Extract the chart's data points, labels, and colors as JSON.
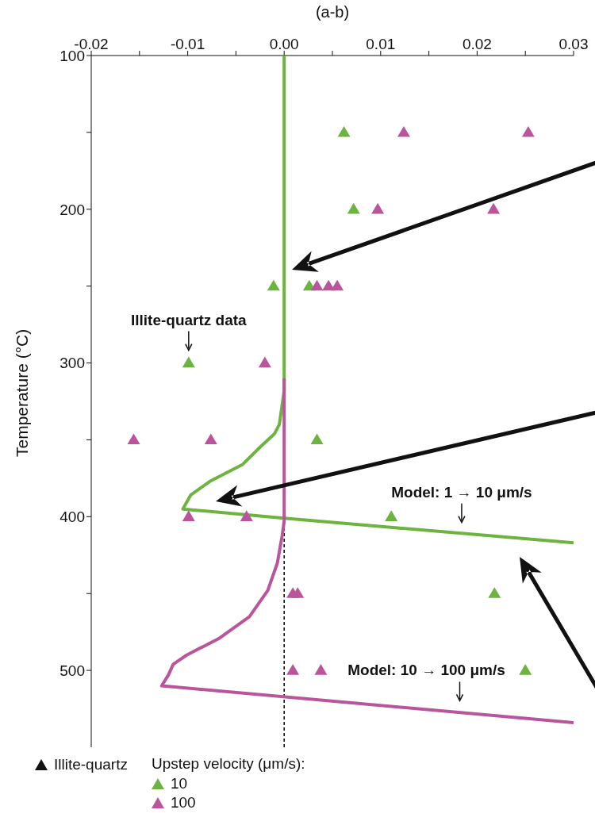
{
  "chart_data": {
    "type": "scatter",
    "xlabel": "(a-b)",
    "ylabel": "Temperature (°C)",
    "legend_title": "Upstep velocity (μm/s):",
    "legend": "bottom",
    "marker": "triangle",
    "grid": false,
    "xlim": [
      -0.02,
      0.03
    ],
    "xticks": [
      -0.02,
      {
        "value": -0.015,
        "label": null
      },
      -0.01,
      {
        "value": -0.005,
        "label": null
      },
      {
        "value": 0,
        "label": "0.00"
      },
      {
        "value": 0.005,
        "label": null
      },
      0.01,
      {
        "value": 0.015,
        "label": null
      },
      0.02,
      {
        "value": 0.025,
        "label": null
      },
      0.03
    ],
    "ylim": [
      550,
      100
    ],
    "yticks": [
      100,
      {
        "value": 150,
        "label": null
      },
      200,
      {
        "value": 250,
        "label": null
      },
      300,
      {
        "value": 350,
        "label": null
      },
      400,
      {
        "value": 450,
        "label": null
      },
      500
    ],
    "ref_lines": [
      {
        "axis": "x",
        "value": 0,
        "label": null,
        "color": "#000000",
        "line_style": "dashed"
      }
    ],
    "series": [
      {
        "type": "line",
        "marker": "none",
        "color": "#6db33f",
        "x": [
          0,
          0,
          -0.0005,
          -0.001,
          -0.0027,
          -0.0043,
          -0.0077,
          -0.0097,
          -0.0105,
          0,
          0.03
        ],
        "values": [
          100,
          318,
          340,
          346,
          356,
          366,
          377,
          386,
          395,
          401,
          417
        ]
      },
      {
        "type": "line",
        "marker": "none",
        "color": "#bb559b",
        "x": [
          0,
          0,
          -0.0002,
          -0.0007,
          -0.0017,
          -0.0036,
          -0.0067,
          -0.0101,
          -0.0115,
          -0.012,
          -0.0127,
          0.03
        ],
        "values": [
          310,
          403,
          412,
          430,
          448,
          465,
          479,
          490,
          496,
          503,
          510,
          534
        ]
      },
      {
        "name": "10",
        "color": "#6db33f",
        "x": [
          0.0062,
          0.0072,
          -0.0011,
          0.0026,
          -0.0099,
          0.0034,
          0.0111,
          0.0218,
          0.025
        ],
        "values": [
          150,
          200,
          250,
          250,
          300,
          350,
          400,
          450,
          500
        ]
      },
      {
        "name": "100",
        "color": "#bb559b",
        "x": [
          0.0124,
          0.0253,
          0.0097,
          0.0217,
          0.0034,
          0.0046,
          0.0055,
          -0.002,
          -0.0156,
          -0.0076,
          -0.0099,
          -0.0039,
          0.0009,
          0.0014,
          0.0009,
          0.0038
        ],
        "values": [
          150,
          150,
          200,
          200,
          250,
          250,
          250,
          300,
          350,
          350,
          400,
          400,
          450,
          450,
          500,
          500
        ]
      }
    ],
    "annotations": [
      {
        "text": "Illite-quartz data",
        "x": -0.0099,
        "y": 300
      },
      {
        "text": "Model: 1 → 10 μm/s",
        "x": 0.0184,
        "y": 411
      },
      {
        "text": "Model: 10 → 100 μm/s",
        "x": 0.0182,
        "y": 527
      },
      "Illite-quartz"
    ]
  }
}
